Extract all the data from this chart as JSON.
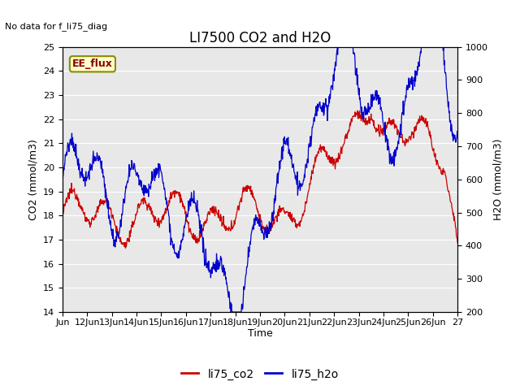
{
  "title": "LI7500 CO2 and H2O",
  "top_left_text": "No data for f_li75_diag",
  "xlabel": "Time",
  "ylabel_left": "CO2 (mmol/m3)",
  "ylabel_right": "H2O (mmol/m3)",
  "ylim_left": [
    14.0,
    25.0
  ],
  "ylim_right": [
    200,
    1000
  ],
  "yticks_left": [
    14.0,
    15.0,
    16.0,
    17.0,
    18.0,
    19.0,
    20.0,
    21.0,
    22.0,
    23.0,
    24.0,
    25.0
  ],
  "yticks_right": [
    200,
    300,
    400,
    500,
    600,
    700,
    800,
    900,
    1000
  ],
  "xtick_labels": [
    "Jun",
    "12Jun",
    "13Jun",
    "14Jun",
    "15Jun",
    "16Jun",
    "17Jun",
    "18Jun",
    "19Jun",
    "20Jun",
    "21Jun",
    "22Jun",
    "23Jun",
    "24Jun",
    "25Jun",
    "26Jun",
    "27"
  ],
  "box_label": "EE_flux",
  "legend_co2": "li75_co2",
  "legend_h2o": "li75_h2o",
  "color_co2": "#cc0000",
  "color_h2o": "#0000cc",
  "bg_color": "#e8e8e8",
  "title_fontsize": 12,
  "label_fontsize": 9,
  "tick_fontsize": 8,
  "annotation_fontsize": 8,
  "legend_fontsize": 10
}
